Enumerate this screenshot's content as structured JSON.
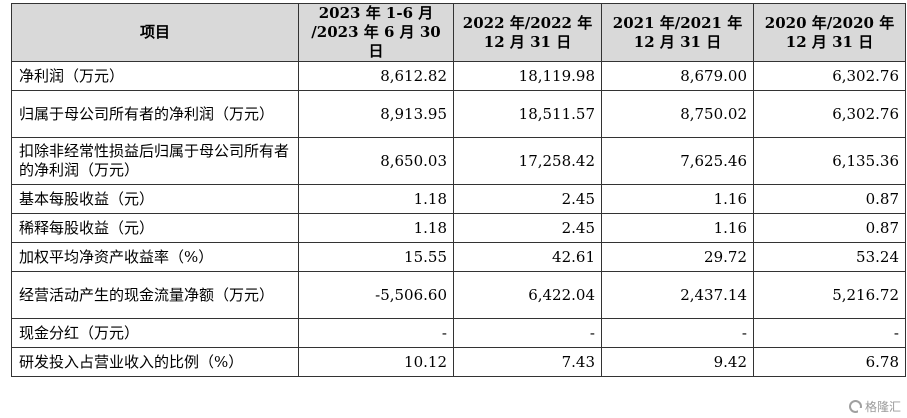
{
  "table": {
    "headers": [
      [
        "项目"
      ],
      [
        "2023 年 1-6 月",
        "/2023 年 6 月 30 日"
      ],
      [
        "2022 年/2022 年",
        "12 月 31 日"
      ],
      [
        "2021 年/2021 年",
        "12 月 31 日"
      ],
      [
        "2020 年/2020 年",
        "12 月 31 日"
      ]
    ],
    "rows": [
      {
        "label": "净利润（万元）",
        "values": [
          "8,612.82",
          "18,119.98",
          "8,679.00",
          "6,302.76"
        ]
      },
      {
        "label": "归属于母公司所有者的净利润（万元）",
        "values": [
          "8,913.95",
          "18,511.57",
          "8,750.02",
          "6,302.76"
        ]
      },
      {
        "label": "扣除非经常性损益后归属于母公司所有者的净利润（万元）",
        "values": [
          "8,650.03",
          "17,258.42",
          "7,625.46",
          "6,135.36"
        ]
      },
      {
        "label": "基本每股收益（元）",
        "values": [
          "1.18",
          "2.45",
          "1.16",
          "0.87"
        ]
      },
      {
        "label": "稀释每股收益（元）",
        "values": [
          "1.18",
          "2.45",
          "1.16",
          "0.87"
        ]
      },
      {
        "label": "加权平均净资产收益率（%）",
        "values": [
          "15.55",
          "42.61",
          "29.72",
          "53.24"
        ]
      },
      {
        "label": "经营活动产生的现金流量净额（万元）",
        "values": [
          "-5,506.60",
          "6,422.04",
          "2,437.14",
          "5,216.72"
        ]
      },
      {
        "label": "现金分红（万元）",
        "values": [
          "-",
          "-",
          "-",
          "-"
        ]
      },
      {
        "label": "研发投入占营业收入的比例（%）",
        "values": [
          "10.12",
          "7.43",
          "9.42",
          "6.78"
        ]
      }
    ]
  },
  "watermark": {
    "text": "格隆汇",
    "icon": "gelonghui-logo-icon"
  }
}
